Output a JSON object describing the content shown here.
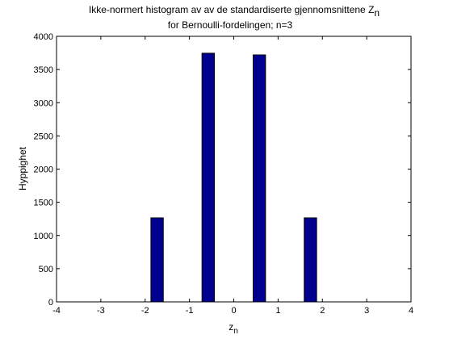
{
  "chart_data": {
    "type": "bar",
    "title_line1": "Ikke-normert histogram av av de standardiserte gjennomsnittene Z",
    "title_line1_subscript": "n",
    "title_line2": "for Bernoulli-fordelingen; n=3",
    "xlabel": "z",
    "xlabel_subscript": "n",
    "ylabel": "Hyppighet",
    "xlim": [
      -4,
      4
    ],
    "ylim": [
      0,
      4000
    ],
    "xticks": [
      -4,
      -3,
      -2,
      -1,
      0,
      1,
      2,
      3,
      4
    ],
    "xtick_labels": [
      "-4",
      "-3",
      "-2",
      "-1",
      "0",
      "1",
      "2",
      "3",
      "4"
    ],
    "yticks": [
      0,
      500,
      1000,
      1500,
      2000,
      2500,
      3000,
      3500,
      4000
    ],
    "ytick_labels": [
      "0",
      "500",
      "1000",
      "1500",
      "2000",
      "2500",
      "3000",
      "3500",
      "4000"
    ],
    "bar_width": 0.28,
    "bar_color": "#00008f",
    "bars": [
      {
        "x": -1.73,
        "value": 1265
      },
      {
        "x": -0.577,
        "value": 3745
      },
      {
        "x": 0.577,
        "value": 3720
      },
      {
        "x": 1.73,
        "value": 1265
      }
    ],
    "grid": false,
    "legend": "none"
  }
}
